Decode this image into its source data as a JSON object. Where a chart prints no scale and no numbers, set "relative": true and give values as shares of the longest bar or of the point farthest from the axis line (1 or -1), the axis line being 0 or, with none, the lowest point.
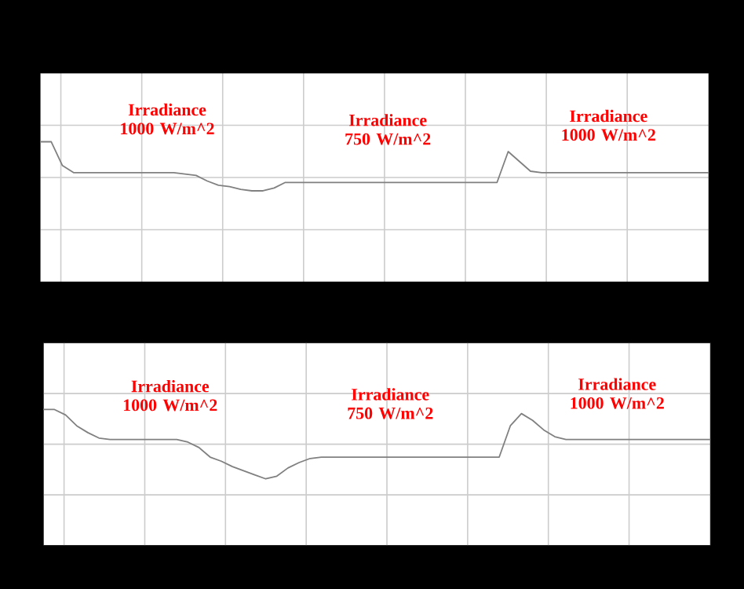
{
  "chart_data": [
    {
      "type": "line",
      "relative": true,
      "grid": true,
      "categories": [
        null,
        null,
        null,
        null,
        null,
        null,
        null,
        null,
        null,
        null,
        null,
        null,
        null,
        null,
        null,
        null,
        null,
        null,
        null,
        null,
        null,
        null,
        null,
        null,
        null,
        null,
        null,
        null,
        null,
        null,
        null,
        null,
        null,
        null,
        null,
        null,
        null,
        null,
        null,
        null,
        null,
        null,
        null,
        null,
        null,
        null,
        null,
        null,
        null,
        null,
        null,
        null,
        null,
        null,
        null,
        null,
        null,
        null,
        null,
        null,
        null
      ],
      "series": [
        {
          "color": "#808080",
          "values": [
            1.0,
            1.0,
            0.83,
            0.78,
            0.78,
            0.78,
            0.78,
            0.78,
            0.78,
            0.78,
            0.78,
            0.78,
            0.78,
            0.77,
            0.76,
            0.72,
            0.69,
            0.68,
            0.66,
            0.65,
            0.65,
            0.67,
            0.71,
            0.71,
            0.71,
            0.71,
            0.71,
            0.71,
            0.71,
            0.71,
            0.71,
            0.71,
            0.71,
            0.71,
            0.71,
            0.71,
            0.71,
            0.71,
            0.71,
            0.71,
            0.71,
            0.71,
            0.93,
            0.86,
            0.79,
            0.78,
            0.78,
            0.78,
            0.78,
            0.78,
            0.78,
            0.78,
            0.78,
            0.78,
            0.78,
            0.78,
            0.78,
            0.78,
            0.78,
            0.78,
            0.78
          ]
        }
      ],
      "annotations": [
        "Irradiance 1000 W/m^2",
        "Irradiance 750 W/m^2",
        "Irradiance 1000 W/m^2"
      ]
    },
    {
      "type": "line",
      "relative": true,
      "grid": true,
      "categories": [
        null,
        null,
        null,
        null,
        null,
        null,
        null,
        null,
        null,
        null,
        null,
        null,
        null,
        null,
        null,
        null,
        null,
        null,
        null,
        null,
        null,
        null,
        null,
        null,
        null,
        null,
        null,
        null,
        null,
        null,
        null,
        null,
        null,
        null,
        null,
        null,
        null,
        null,
        null,
        null,
        null,
        null,
        null,
        null,
        null,
        null,
        null,
        null,
        null,
        null,
        null,
        null,
        null,
        null,
        null,
        null,
        null,
        null,
        null,
        null,
        null
      ],
      "series": [
        {
          "color": "#808080",
          "values": [
            1.0,
            1.0,
            0.96,
            0.88,
            0.83,
            0.79,
            0.78,
            0.78,
            0.78,
            0.78,
            0.78,
            0.78,
            0.78,
            0.76,
            0.72,
            0.65,
            0.62,
            0.58,
            0.55,
            0.52,
            0.49,
            0.51,
            0.57,
            0.61,
            0.64,
            0.65,
            0.65,
            0.65,
            0.65,
            0.65,
            0.65,
            0.65,
            0.65,
            0.65,
            0.65,
            0.65,
            0.65,
            0.65,
            0.65,
            0.65,
            0.65,
            0.65,
            0.88,
            0.97,
            0.92,
            0.85,
            0.8,
            0.78,
            0.78,
            0.78,
            0.78,
            0.78,
            0.78,
            0.78,
            0.78,
            0.78,
            0.78,
            0.78,
            0.78,
            0.78,
            0.78
          ]
        }
      ],
      "annotations": [
        "Irradiance 1000 W/m^2",
        "Irradiance 750 W/m^2",
        "Irradiance 1000 W/m^2"
      ]
    }
  ]
}
